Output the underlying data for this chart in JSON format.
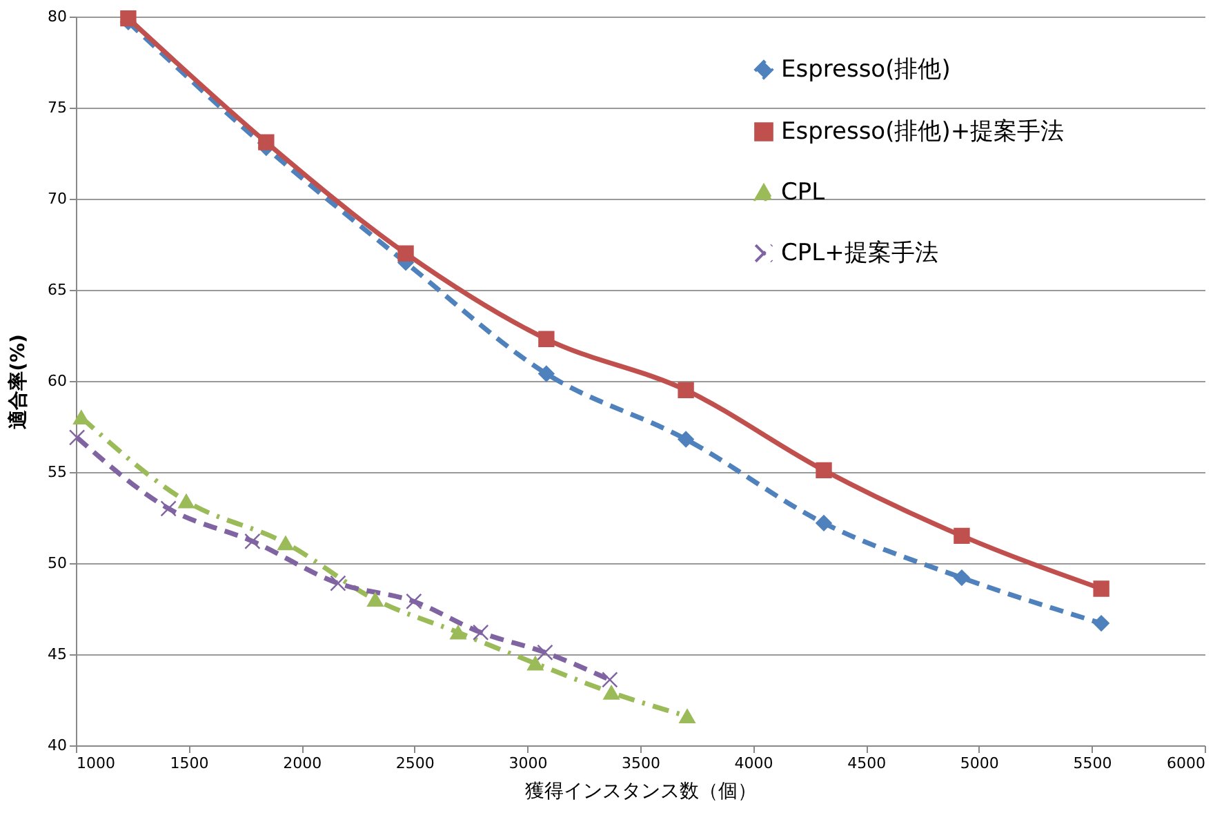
{
  "chart_data": {
    "type": "line",
    "xlabel": "獲得インスタンス数（個）",
    "ylabel": "適合率(%)",
    "xlim": [
      1000,
      6000
    ],
    "xticks": [
      1000,
      1500,
      2000,
      2500,
      3000,
      3500,
      4000,
      4500,
      5000,
      5500,
      6000
    ],
    "ylim": [
      40,
      80
    ],
    "yticks": [
      40,
      45,
      50,
      55,
      60,
      65,
      70,
      75,
      80
    ],
    "grid": "y",
    "legend": "top right",
    "series": [
      {
        "name": "Espresso(排他)",
        "color": "#4f81bd",
        "marker": "diamond",
        "line_style": "dashed",
        "x": [
          1232,
          1843,
          2461,
          3084,
          3702,
          4313,
          4924,
          5542
        ],
        "values": [
          79.7,
          72.8,
          66.5,
          60.4,
          56.8,
          52.2,
          49.2,
          46.7
        ]
      },
      {
        "name": "Espresso(排他)+提案手法",
        "color": "#c0504d",
        "marker": "square",
        "line_style": "solid",
        "x": [
          1232,
          1843,
          2461,
          3084,
          3702,
          4313,
          4924,
          5542
        ],
        "values": [
          79.9,
          73.1,
          67.0,
          62.3,
          59.5,
          55.1,
          51.5,
          48.6
        ]
      },
      {
        "name": "CPL",
        "color": "#9bbb59",
        "marker": "triangle",
        "line_style": "dotted",
        "x": [
          1024,
          1489,
          1929,
          2326,
          2693,
          3035,
          3372,
          3708
        ],
        "values": [
          58.0,
          53.4,
          51.1,
          48.0,
          46.2,
          44.5,
          42.9,
          41.6
        ]
      },
      {
        "name": "CPL+提案手法",
        "color": "#8064a2",
        "marker": "cross",
        "line_style": "dashed",
        "x": [
          1005,
          1410,
          1782,
          2161,
          2497,
          2793,
          3078,
          3365
        ],
        "values": [
          56.9,
          53.0,
          51.2,
          48.9,
          47.9,
          46.2,
          45.1,
          43.6
        ]
      }
    ]
  }
}
